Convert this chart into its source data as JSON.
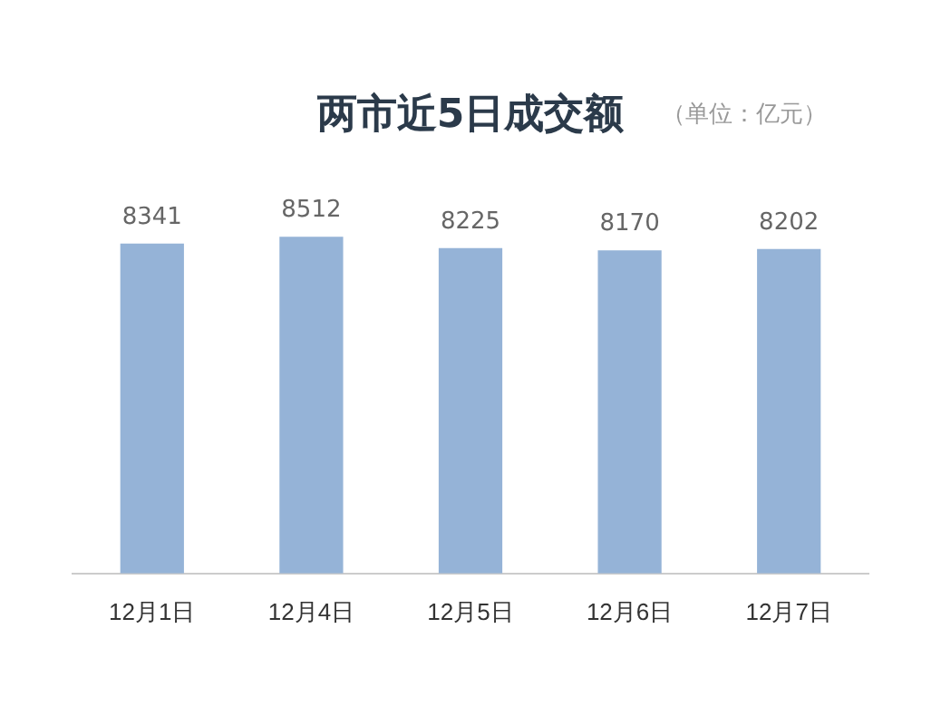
{
  "chart_data": {
    "type": "bar",
    "title": "两市近5日成交额",
    "subtitle": "（单位：亿元）",
    "categories": [
      "12月1日",
      "12月4日",
      "12月5日",
      "12月6日",
      "12月7日"
    ],
    "values": [
      8341,
      8512,
      8225,
      8170,
      8202
    ],
    "color": "#95b3d7",
    "data_labels": true,
    "grid": false,
    "legend": false
  }
}
